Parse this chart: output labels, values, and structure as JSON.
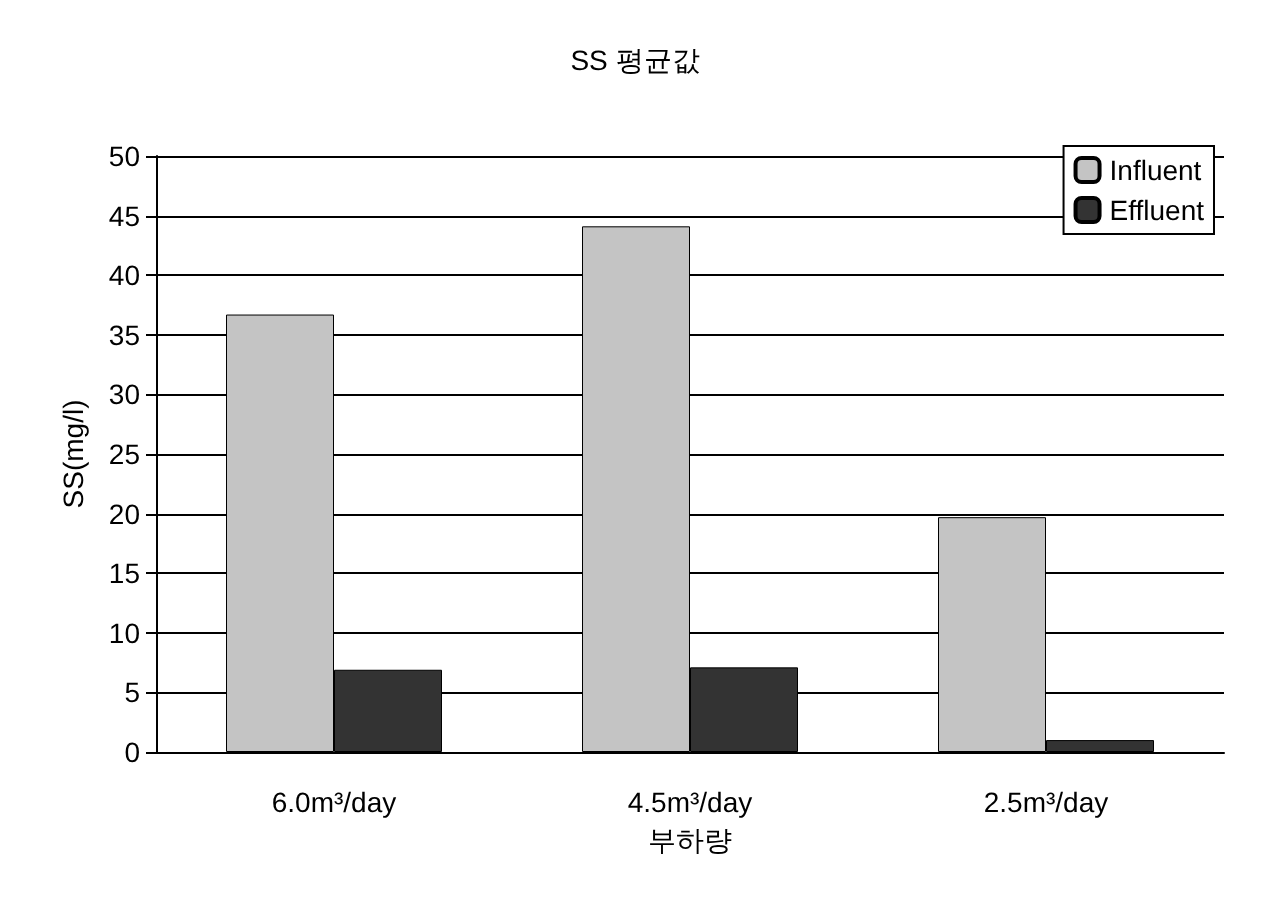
{
  "chart_data": {
    "type": "bar",
    "title": "SS 평균값",
    "xlabel": "부하량",
    "ylabel": "SS(mg/l)",
    "categories": [
      "6.0m³/day",
      "4.5m³/day",
      "2.5m³/day"
    ],
    "series": [
      {
        "name": "Influent",
        "color": "#c4c4c4",
        "values": [
          36.7,
          44.1,
          19.7
        ]
      },
      {
        "name": "Effluent",
        "color": "#333333",
        "values": [
          6.9,
          7.1,
          1
        ]
      }
    ],
    "ylim": [
      0,
      50
    ],
    "yticks": [
      0,
      5,
      10,
      15,
      20,
      25,
      30,
      35,
      40,
      45,
      50
    ],
    "grid": "y",
    "legend": "top right"
  }
}
